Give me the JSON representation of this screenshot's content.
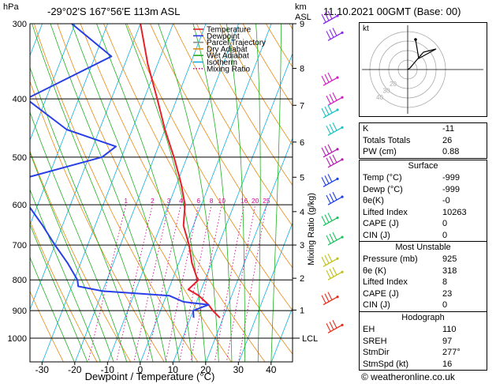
{
  "header": {
    "unit_left": "hPa",
    "location": "-29°02'S  167°56'E  113m  ASL",
    "unit_km": "km",
    "unit_asl": "ASL",
    "datetime": "11.10.2021  00GMT  (Base: 00)"
  },
  "chart_data": {
    "type": "skew-t",
    "xlabel": "Dewpoint / Temperature (°C)",
    "ylabel_left": "hPa",
    "ylabel_right": "Mixing Ratio (g/kg)",
    "pressure_ticks": [
      300,
      400,
      500,
      600,
      700,
      800,
      900,
      1000
    ],
    "temp_ticks": [
      -30,
      -20,
      -10,
      0,
      10,
      20,
      30,
      40
    ],
    "km_ticks": [
      {
        "km": "9",
        "p": 300
      },
      {
        "km": "8",
        "p": 356
      },
      {
        "km": "7",
        "p": 410
      },
      {
        "km": "6",
        "p": 472
      },
      {
        "km": "5",
        "p": 540
      },
      {
        "km": "4",
        "p": 616
      },
      {
        "km": "3",
        "p": 700
      },
      {
        "km": "2",
        "p": 795
      },
      {
        "km": "1",
        "p": 898
      }
    ],
    "lcl_label": "LCL",
    "lcl_pressure": 1000,
    "mixing_ratio_labels": [
      "1",
      "2",
      "3",
      "4",
      "6",
      "8",
      "10",
      "16",
      "20",
      "25"
    ],
    "mixing_ratio_values": [
      1,
      2,
      3,
      4,
      6,
      8,
      10,
      16,
      20,
      25
    ],
    "legend": [
      {
        "name": "Temperature",
        "color": "#e8202a",
        "style": "solid"
      },
      {
        "name": "Dewpoint",
        "color": "#2a3ee8",
        "style": "solid"
      },
      {
        "name": "Parcel Trajectory",
        "color": "#888888",
        "style": "solid"
      },
      {
        "name": "Dry Adiabat",
        "color": "#e88a10",
        "style": "solid"
      },
      {
        "name": "Wet Adiabat",
        "color": "#20b020",
        "style": "solid"
      },
      {
        "name": "Isotherm",
        "color": "#10b0e0",
        "style": "solid"
      },
      {
        "name": "Mixing Ratio",
        "color": "#d01090",
        "style": "dotted"
      }
    ],
    "temperature_profile": [
      {
        "p": 300,
        "t": -40
      },
      {
        "p": 350,
        "t": -33
      },
      {
        "p": 400,
        "t": -26
      },
      {
        "p": 450,
        "t": -20
      },
      {
        "p": 500,
        "t": -14
      },
      {
        "p": 550,
        "t": -9
      },
      {
        "p": 600,
        "t": -5
      },
      {
        "p": 650,
        "t": -3
      },
      {
        "p": 700,
        "t": 1
      },
      {
        "p": 750,
        "t": 4
      },
      {
        "p": 790,
        "t": 7
      },
      {
        "p": 800,
        "t": 8
      },
      {
        "p": 830,
        "t": 6
      },
      {
        "p": 850,
        "t": 10
      },
      {
        "p": 880,
        "t": 14
      },
      {
        "p": 900,
        "t": 16
      },
      {
        "p": 925,
        "t": 19
      }
    ],
    "dewpoint_profile": [
      {
        "p": 300,
        "t": -61
      },
      {
        "p": 340,
        "t": -45
      },
      {
        "p": 400,
        "t": -66
      },
      {
        "p": 450,
        "t": -50
      },
      {
        "p": 480,
        "t": -33
      },
      {
        "p": 500,
        "t": -36
      },
      {
        "p": 550,
        "t": -61
      },
      {
        "p": 600,
        "t": -53
      },
      {
        "p": 650,
        "t": -46
      },
      {
        "p": 700,
        "t": -40
      },
      {
        "p": 750,
        "t": -34
      },
      {
        "p": 800,
        "t": -29
      },
      {
        "p": 820,
        "t": -28
      },
      {
        "p": 835,
        "t": -20
      },
      {
        "p": 850,
        "t": 1
      },
      {
        "p": 870,
        "t": 6
      },
      {
        "p": 880,
        "t": 14
      },
      {
        "p": 900,
        "t": 10
      },
      {
        "p": 925,
        "t": 11
      }
    ],
    "parcel_profile": [],
    "grid": true
  },
  "hodograph": {
    "unit_label": "kt",
    "ring_labels": [
      "20",
      "30",
      "40"
    ],
    "trace_color": "#000000"
  },
  "wind_barbs": {
    "colors": [
      "#8a2be2",
      "#8a2be2",
      "#d020c0",
      "#d020c0",
      "#20c0c0",
      "#20c0c0",
      "#b020b0",
      "#b020b0",
      "#2040e0",
      "#2040e0",
      "#20c060",
      "#20c060",
      "#c0c020",
      "#c0c020",
      "#e03020",
      "#e03020"
    ]
  },
  "tables": {
    "basic": [
      {
        "label": "K",
        "value": "-11"
      },
      {
        "label": "Totals Totals",
        "value": "26"
      },
      {
        "label": "PW (cm)",
        "value": "0.88"
      }
    ],
    "surface_title": "Surface",
    "surface": [
      {
        "label": "Temp (°C)",
        "value": "-999"
      },
      {
        "label": "Dewp (°C)",
        "value": "-999"
      },
      {
        "label": "θe(K)",
        "value": "-0"
      },
      {
        "label": "Lifted Index",
        "value": "10263"
      },
      {
        "label": "CAPE (J)",
        "value": "0"
      },
      {
        "label": "CIN (J)",
        "value": "0"
      }
    ],
    "unstable_title": "Most Unstable",
    "unstable": [
      {
        "label": "Pressure (mb)",
        "value": "925"
      },
      {
        "label": "θe (K)",
        "value": "318"
      },
      {
        "label": "Lifted Index",
        "value": "8"
      },
      {
        "label": "CAPE (J)",
        "value": "23"
      },
      {
        "label": "CIN (J)",
        "value": "0"
      }
    ],
    "hodograph_title": "Hodograph",
    "hodo": [
      {
        "label": "EH",
        "value": "110"
      },
      {
        "label": "SREH",
        "value": "97"
      },
      {
        "label": "StmDir",
        "value": "277°"
      },
      {
        "label": "StmSpd (kt)",
        "value": "16"
      }
    ]
  },
  "footer": {
    "copyright": "© weatheronline.co.uk"
  }
}
